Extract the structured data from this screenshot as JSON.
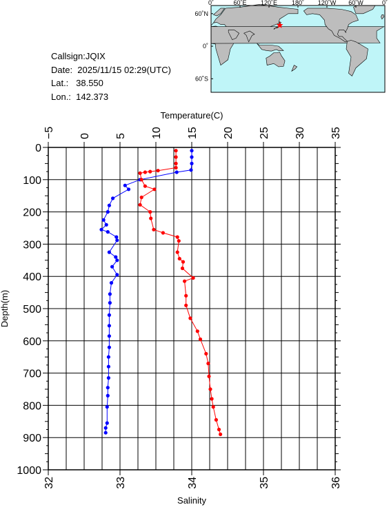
{
  "station": {
    "callsign": "Callsign:JQIX",
    "date": "Date:  2025/11/15 02:29(UTC)",
    "lat": "Lat.:   38.550",
    "lon": "Lon.:  142.373"
  },
  "map": {
    "top_labels": [
      "0˚",
      "60˚E",
      "120˚E",
      "180˚",
      "120˚W",
      "60˚W",
      "0˚"
    ],
    "side_labels": [
      "60˚N",
      "0˚",
      "60˚S"
    ],
    "marker": {
      "lon": 142.373,
      "lat": 38.55
    },
    "colors": {
      "ocean": "#bff5f8",
      "land": "#bdbdbd",
      "marker": "#ff0000"
    }
  },
  "chart_data": {
    "type": "line",
    "ylabel": "Depth(m)",
    "top_xlabel": "Temperature(C)",
    "bottom_xlabel": "Salinity",
    "ylim": [
      0,
      1000
    ],
    "yticks": [
      0,
      100,
      200,
      300,
      400,
      500,
      600,
      700,
      800,
      900,
      1000
    ],
    "temperature_axis": {
      "lim": [
        -5,
        35
      ],
      "ticks": [
        -5,
        0,
        5,
        10,
        15,
        20,
        25,
        30,
        35
      ]
    },
    "salinity_axis": {
      "lim": [
        32,
        36
      ],
      "ticks": [
        32,
        33,
        34,
        35,
        36
      ]
    },
    "series": [
      {
        "quantity": "temperature",
        "color": "#0000ff",
        "points": [
          [
            15.0,
            10
          ],
          [
            15.0,
            30
          ],
          [
            15.0,
            50
          ],
          [
            14.9,
            70
          ],
          [
            12.9,
            77
          ],
          [
            7.8,
            100
          ],
          [
            5.7,
            118
          ],
          [
            6.2,
            130
          ],
          [
            4.0,
            158
          ],
          [
            3.5,
            180
          ],
          [
            3.3,
            200
          ],
          [
            2.7,
            225
          ],
          [
            3.1,
            240
          ],
          [
            2.4,
            255
          ],
          [
            3.3,
            262
          ],
          [
            4.5,
            278
          ],
          [
            4.6,
            288
          ],
          [
            3.5,
            325
          ],
          [
            4.4,
            340
          ],
          [
            4.6,
            350
          ],
          [
            3.9,
            370
          ],
          [
            4.6,
            395
          ],
          [
            3.8,
            420
          ],
          [
            3.6,
            455
          ],
          [
            3.6,
            482
          ],
          [
            3.5,
            520
          ],
          [
            3.5,
            553
          ],
          [
            3.5,
            585
          ],
          [
            3.5,
            620
          ],
          [
            3.4,
            650
          ],
          [
            3.4,
            680
          ],
          [
            3.4,
            715
          ],
          [
            3.3,
            745
          ],
          [
            3.3,
            770
          ],
          [
            3.2,
            805
          ],
          [
            3.2,
            855
          ],
          [
            3.0,
            870
          ],
          [
            3.0,
            885
          ]
        ]
      },
      {
        "quantity": "salinity",
        "color": "#ff0000",
        "points": [
          [
            33.78,
            10
          ],
          [
            33.78,
            30
          ],
          [
            33.78,
            50
          ],
          [
            33.78,
            63
          ],
          [
            33.53,
            72
          ],
          [
            33.42,
            75
          ],
          [
            33.35,
            77
          ],
          [
            33.28,
            80
          ],
          [
            33.3,
            100
          ],
          [
            33.35,
            120
          ],
          [
            33.48,
            130
          ],
          [
            33.3,
            155
          ],
          [
            33.28,
            178
          ],
          [
            33.42,
            200
          ],
          [
            33.43,
            220
          ],
          [
            33.47,
            255
          ],
          [
            33.6,
            265
          ],
          [
            33.8,
            278
          ],
          [
            33.82,
            290
          ],
          [
            33.8,
            325
          ],
          [
            33.83,
            345
          ],
          [
            33.88,
            355
          ],
          [
            33.87,
            375
          ],
          [
            34.02,
            405
          ],
          [
            33.9,
            415
          ],
          [
            33.92,
            460
          ],
          [
            33.92,
            490
          ],
          [
            33.98,
            530
          ],
          [
            34.08,
            570
          ],
          [
            34.12,
            595
          ],
          [
            34.2,
            640
          ],
          [
            34.23,
            670
          ],
          [
            34.24,
            710
          ],
          [
            34.26,
            750
          ],
          [
            34.28,
            780
          ],
          [
            34.3,
            805
          ],
          [
            34.34,
            845
          ],
          [
            34.38,
            875
          ],
          [
            34.4,
            890
          ]
        ]
      }
    ]
  }
}
